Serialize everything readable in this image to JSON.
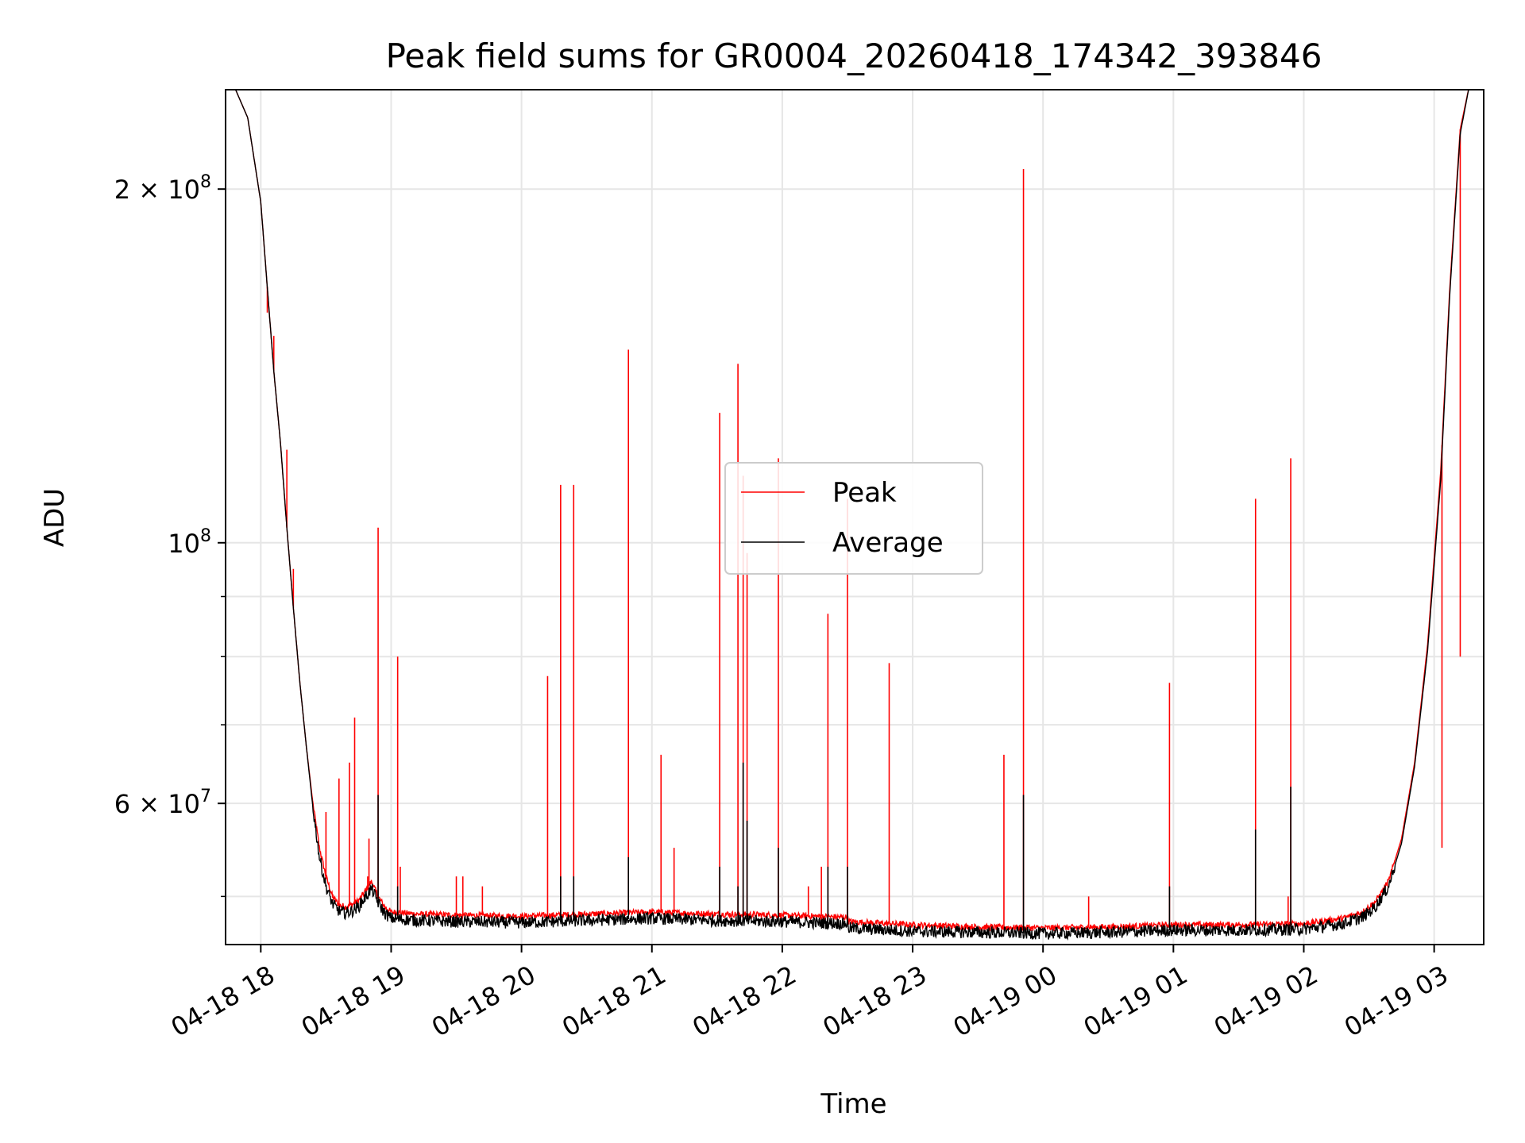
{
  "chart_data": {
    "type": "line",
    "title": "Peak field sums for GR0004_20260418_174342_393846",
    "xlabel": "Time",
    "ylabel": "ADU",
    "yscale": "log",
    "xlim_hours": [
      -0.27,
      9.38
    ],
    "ylim": [
      45500000,
      243000000
    ],
    "grid": true,
    "legend_position": "center",
    "x_ticks": [
      {
        "hours": 0,
        "label": "04-18 18"
      },
      {
        "hours": 1,
        "label": "04-18 19"
      },
      {
        "hours": 2,
        "label": "04-18 20"
      },
      {
        "hours": 3,
        "label": "04-18 21"
      },
      {
        "hours": 4,
        "label": "04-18 22"
      },
      {
        "hours": 5,
        "label": "04-18 23"
      },
      {
        "hours": 6,
        "label": "04-19 00"
      },
      {
        "hours": 7,
        "label": "04-19 01"
      },
      {
        "hours": 8,
        "label": "04-19 02"
      },
      {
        "hours": 9,
        "label": "04-19 03"
      }
    ],
    "y_major_ticks": [
      {
        "value": 200000000,
        "base": "2 × 10",
        "exp": "8"
      },
      {
        "value": 100000000,
        "base": "10",
        "exp": "8"
      },
      {
        "value": 60000000,
        "base": "6 × 10",
        "exp": "7"
      }
    ],
    "y_minor_ticks": [
      50000000,
      70000000,
      80000000,
      90000000
    ],
    "series": [
      {
        "name": "Peak",
        "color": "#ff0000",
        "baseline": [
          [
            -0.27,
            245000000
          ],
          [
            -0.2,
            244000000
          ],
          [
            -0.1,
            230000000
          ],
          [
            0,
            195000000
          ],
          [
            0.05,
            165000000
          ],
          [
            0.1,
            140000000
          ],
          [
            0.15,
            122000000
          ],
          [
            0.2,
            103000000
          ],
          [
            0.25,
            88000000
          ],
          [
            0.3,
            76000000
          ],
          [
            0.35,
            67000000
          ],
          [
            0.4,
            60000000
          ],
          [
            0.45,
            55000000
          ],
          [
            0.5,
            52000000
          ],
          [
            0.55,
            50000000
          ],
          [
            0.6,
            49200000
          ],
          [
            0.65,
            49000000
          ],
          [
            0.7,
            49200000
          ],
          [
            0.75,
            49600000
          ],
          [
            0.8,
            50500000
          ],
          [
            0.85,
            51500000
          ],
          [
            0.9,
            50000000
          ],
          [
            0.95,
            49000000
          ],
          [
            1.0,
            48500000
          ],
          [
            1.2,
            48300000
          ],
          [
            1.5,
            48200000
          ],
          [
            2.0,
            48100000
          ],
          [
            2.5,
            48300000
          ],
          [
            3.0,
            48500000
          ],
          [
            3.5,
            48300000
          ],
          [
            4.0,
            48200000
          ],
          [
            4.5,
            48000000
          ],
          [
            4.51,
            47600000
          ],
          [
            5.0,
            47300000
          ],
          [
            5.5,
            47100000
          ],
          [
            6.0,
            47000000
          ],
          [
            6.5,
            47100000
          ],
          [
            7.0,
            47300000
          ],
          [
            7.5,
            47300000
          ],
          [
            8.0,
            47400000
          ],
          [
            8.3,
            47900000
          ],
          [
            8.45,
            48500000
          ],
          [
            8.55,
            49500000
          ],
          [
            8.65,
            51500000
          ],
          [
            8.75,
            56000000
          ],
          [
            8.85,
            65000000
          ],
          [
            8.95,
            82000000
          ],
          [
            9.05,
            115000000
          ],
          [
            9.12,
            165000000
          ],
          [
            9.2,
            225000000
          ],
          [
            9.27,
            245000000
          ],
          [
            9.38,
            245000000
          ]
        ],
        "spikes": [
          [
            0.05,
            157000000
          ],
          [
            0.1,
            150000000
          ],
          [
            0.2,
            120000000
          ],
          [
            0.25,
            95000000
          ],
          [
            0.5,
            59000000
          ],
          [
            0.6,
            63000000
          ],
          [
            0.68,
            65000000
          ],
          [
            0.72,
            71000000
          ],
          [
            0.83,
            56000000
          ],
          [
            0.82,
            52000000
          ],
          [
            0.9,
            103000000
          ],
          [
            1.05,
            80000000
          ],
          [
            1.07,
            53000000
          ],
          [
            1.5,
            52000000
          ],
          [
            1.55,
            52000000
          ],
          [
            1.7,
            51000000
          ],
          [
            2.2,
            77000000
          ],
          [
            2.3,
            112000000
          ],
          [
            2.4,
            112000000
          ],
          [
            2.82,
            146000000
          ],
          [
            3.07,
            66000000
          ],
          [
            3.17,
            55000000
          ],
          [
            3.52,
            129000000
          ],
          [
            3.66,
            142000000
          ],
          [
            3.7,
            114000000
          ],
          [
            3.73,
            98000000
          ],
          [
            3.97,
            118000000
          ],
          [
            4.2,
            51000000
          ],
          [
            4.3,
            53000000
          ],
          [
            4.35,
            87000000
          ],
          [
            4.5,
            109000000
          ],
          [
            4.82,
            79000000
          ],
          [
            5.7,
            66000000
          ],
          [
            5.85,
            208000000
          ],
          [
            6.35,
            50000000
          ],
          [
            6.97,
            76000000
          ],
          [
            7.63,
            109000000
          ],
          [
            7.9,
            118000000
          ],
          [
            7.88,
            50000000
          ],
          [
            8.5,
            49000000
          ],
          [
            9.06,
            55000000
          ],
          [
            9.2,
            80000000
          ]
        ]
      },
      {
        "name": "Average",
        "color": "#000000",
        "baseline": [
          [
            -0.27,
            245000000
          ],
          [
            -0.2,
            244000000
          ],
          [
            -0.1,
            230000000
          ],
          [
            0,
            195000000
          ],
          [
            0.05,
            165000000
          ],
          [
            0.1,
            140000000
          ],
          [
            0.15,
            122000000
          ],
          [
            0.2,
            103000000
          ],
          [
            0.25,
            88000000
          ],
          [
            0.3,
            76000000
          ],
          [
            0.35,
            67000000
          ],
          [
            0.4,
            59500000
          ],
          [
            0.45,
            54000000
          ],
          [
            0.5,
            51000000
          ],
          [
            0.55,
            49300000
          ],
          [
            0.6,
            48600000
          ],
          [
            0.65,
            48400000
          ],
          [
            0.7,
            48600000
          ],
          [
            0.75,
            49000000
          ],
          [
            0.8,
            49900000
          ],
          [
            0.85,
            50800000
          ],
          [
            0.9,
            49400000
          ],
          [
            0.95,
            48400000
          ],
          [
            1.0,
            47900000
          ],
          [
            1.2,
            47700000
          ],
          [
            1.5,
            47600000
          ],
          [
            2.0,
            47500000
          ],
          [
            2.5,
            47700000
          ],
          [
            3.0,
            47900000
          ],
          [
            3.5,
            47700000
          ],
          [
            4.0,
            47600000
          ],
          [
            4.5,
            47400000
          ],
          [
            4.51,
            47000000
          ],
          [
            5.0,
            46700000
          ],
          [
            5.5,
            46600000
          ],
          [
            6.0,
            46500000
          ],
          [
            6.5,
            46600000
          ],
          [
            7.0,
            46800000
          ],
          [
            7.5,
            46800000
          ],
          [
            8.0,
            46900000
          ],
          [
            8.3,
            47400000
          ],
          [
            8.45,
            48000000
          ],
          [
            8.55,
            49000000
          ],
          [
            8.65,
            51000000
          ],
          [
            8.75,
            55500000
          ],
          [
            8.85,
            64500000
          ],
          [
            8.95,
            81000000
          ],
          [
            9.05,
            113000000
          ],
          [
            9.12,
            163000000
          ],
          [
            9.2,
            223000000
          ],
          [
            9.27,
            245000000
          ],
          [
            9.38,
            245000000
          ]
        ],
        "spikes": [
          [
            0.9,
            61000000
          ],
          [
            1.05,
            51000000
          ],
          [
            2.3,
            52000000
          ],
          [
            2.4,
            52000000
          ],
          [
            2.82,
            54000000
          ],
          [
            3.52,
            53000000
          ],
          [
            3.66,
            51000000
          ],
          [
            3.7,
            65000000
          ],
          [
            3.73,
            58000000
          ],
          [
            3.97,
            55000000
          ],
          [
            4.35,
            53000000
          ],
          [
            4.5,
            53000000
          ],
          [
            5.85,
            61000000
          ],
          [
            6.97,
            51000000
          ],
          [
            7.63,
            57000000
          ],
          [
            7.9,
            62000000
          ]
        ]
      }
    ]
  }
}
